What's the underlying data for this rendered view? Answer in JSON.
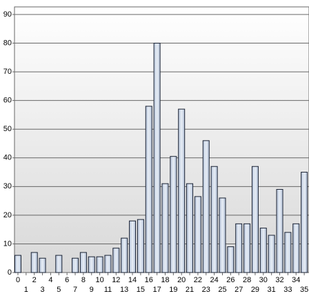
{
  "chart_data": {
    "type": "bar",
    "categories": [
      "0",
      "1",
      "2",
      "3",
      "4",
      "5",
      "6",
      "7",
      "8",
      "9",
      "10",
      "11",
      "12",
      "13",
      "14",
      "15",
      "16",
      "17",
      "18",
      "19",
      "20",
      "21",
      "22",
      "23",
      "24",
      "25",
      "26",
      "27",
      "28",
      "29",
      "30",
      "31",
      "32",
      "33",
      "34",
      "35"
    ],
    "values": [
      6,
      0,
      7,
      5,
      0,
      6,
      0,
      5,
      7,
      5.5,
      5.5,
      6,
      8.5,
      12,
      18,
      18.5,
      58,
      80,
      31,
      40.5,
      57,
      31,
      26.5,
      46,
      37,
      26,
      9,
      17,
      17,
      37,
      15.5,
      13,
      29,
      14,
      17,
      35
    ],
    "color": "#b4c2d8",
    "ylim": [
      0,
      90
    ],
    "yticks": [
      0,
      10,
      20,
      30,
      40,
      50,
      60,
      70,
      80,
      90
    ],
    "grid": true
  }
}
